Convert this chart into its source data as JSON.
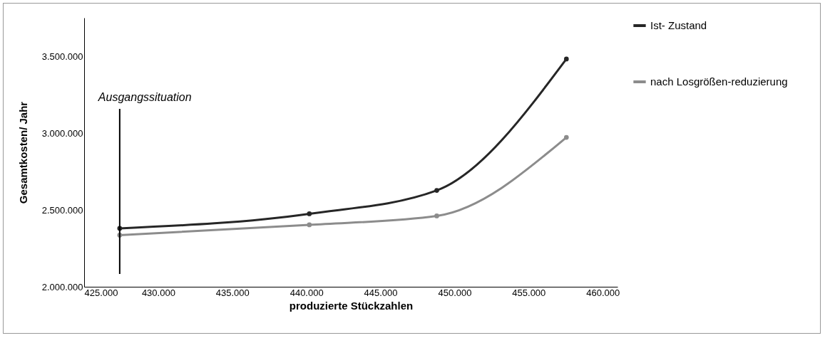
{
  "chart_data": {
    "type": "line",
    "xlabel": "produzierte Stückzahlen",
    "ylabel": "Gesamtkosten/ Jahr",
    "x": [
      427400,
      440200,
      448800,
      457550
    ],
    "series": [
      {
        "name": "Ist- Zustand",
        "color": "#262626",
        "values": [
          2380000,
          2475000,
          2627000,
          3482000
        ]
      },
      {
        "name": "nach Losgrößen-reduzierung",
        "color": "#8c8c8c",
        "values": [
          2336000,
          2403000,
          2461000,
          2972000
        ]
      }
    ],
    "xlim": [
      425000,
      461000
    ],
    "xticks": [
      {
        "value": 425000,
        "label": "425.000"
      },
      {
        "value": 430000,
        "label": "430.000"
      },
      {
        "value": 435000,
        "label": "435.000"
      },
      {
        "value": 440000,
        "label": "440.000"
      },
      {
        "value": 445000,
        "label": "445.000"
      },
      {
        "value": 450000,
        "label": "450.000"
      },
      {
        "value": 455000,
        "label": "455.000"
      },
      {
        "value": 460000,
        "label": "460.000"
      }
    ],
    "ylim": [
      2000000,
      3750000
    ],
    "yticks": [
      {
        "value": 2000000,
        "label": "2.000.000"
      },
      {
        "value": 2500000,
        "label": "2.500.000"
      },
      {
        "value": 3000000,
        "label": "3.000.000"
      },
      {
        "value": 3500000,
        "label": "3.500.000"
      }
    ],
    "ref_lines": [
      {
        "axis": "x",
        "value": 427400,
        "label": "Ausgangssituation",
        "color": "#000000"
      }
    ],
    "grid": false,
    "legend": "top right",
    "marker": "circle",
    "line_style": "solid"
  }
}
